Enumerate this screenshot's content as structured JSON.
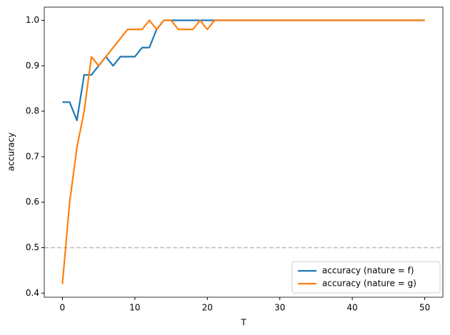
{
  "chart_data": {
    "type": "line",
    "xlabel": "T",
    "ylabel": "accuracy",
    "x": [
      0,
      1,
      2,
      3,
      4,
      5,
      6,
      7,
      8,
      9,
      10,
      11,
      12,
      13,
      14,
      15,
      16,
      17,
      18,
      19,
      20,
      21,
      22,
      23,
      24,
      25,
      26,
      27,
      28,
      29,
      30,
      31,
      32,
      33,
      34,
      35,
      36,
      37,
      38,
      39,
      40,
      41,
      42,
      43,
      44,
      45,
      46,
      47,
      48,
      49,
      50
    ],
    "series": [
      {
        "name": "accuracy (nature = f)",
        "color": "#1f77b4",
        "values": [
          0.82,
          0.82,
          0.78,
          0.88,
          0.88,
          0.9,
          0.92,
          0.9,
          0.92,
          0.92,
          0.92,
          0.94,
          0.94,
          0.98,
          1.0,
          1.0,
          1.0,
          1.0,
          1.0,
          1.0,
          1.0,
          1.0,
          1.0,
          1.0,
          1.0,
          1.0,
          1.0,
          1.0,
          1.0,
          1.0,
          1.0,
          1.0,
          1.0,
          1.0,
          1.0,
          1.0,
          1.0,
          1.0,
          1.0,
          1.0,
          1.0,
          1.0,
          1.0,
          1.0,
          1.0,
          1.0,
          1.0,
          1.0,
          1.0,
          1.0,
          1.0
        ]
      },
      {
        "name": "accuracy (nature = g)",
        "color": "#ff7f0e",
        "values": [
          0.42,
          0.6,
          0.72,
          0.8,
          0.92,
          0.9,
          0.92,
          0.94,
          0.96,
          0.98,
          0.98,
          0.98,
          1.0,
          0.98,
          1.0,
          1.0,
          0.98,
          0.98,
          0.98,
          1.0,
          0.98,
          1.0,
          1.0,
          1.0,
          1.0,
          1.0,
          1.0,
          1.0,
          1.0,
          1.0,
          1.0,
          1.0,
          1.0,
          1.0,
          1.0,
          1.0,
          1.0,
          1.0,
          1.0,
          1.0,
          1.0,
          1.0,
          1.0,
          1.0,
          1.0,
          1.0,
          1.0,
          1.0,
          1.0,
          1.0,
          1.0
        ]
      }
    ],
    "hline": 0.5,
    "hline_color": "#bbbbbb",
    "xlim": [
      -2.5,
      52.5
    ],
    "xticks": [
      0,
      10,
      20,
      30,
      40,
      50
    ],
    "ylim": [
      0.391,
      1.029
    ],
    "yticks": [
      0.4,
      0.5,
      0.6,
      0.7,
      0.8,
      0.9,
      {
        "value": 1,
        "label": "1.0"
      }
    ],
    "legend": "lower right"
  }
}
